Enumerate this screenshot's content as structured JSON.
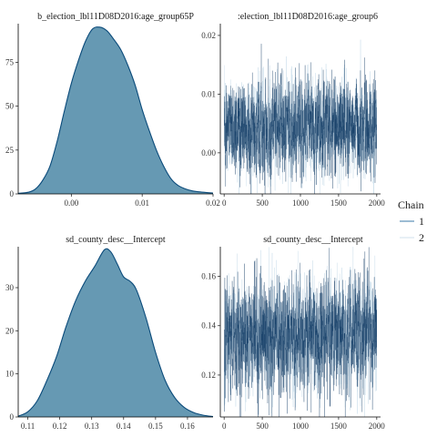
{
  "chart_data": [
    {
      "type": "area",
      "subtype": "density",
      "title": "b_election_lbl11D08D2016:age_group65P",
      "xlim": [
        -0.0075,
        0.02
      ],
      "ylim": [
        0,
        97
      ],
      "xticks": [
        0.0,
        0.01,
        0.02
      ],
      "xtick_labels": [
        "0.00",
        "0.01",
        "0.02"
      ],
      "yticks": [
        0,
        25,
        50,
        75
      ],
      "ytick_labels": [
        "0",
        "25",
        "50",
        "75"
      ],
      "x": [
        -0.0075,
        -0.006,
        -0.005,
        -0.004,
        -0.003,
        -0.002,
        -0.001,
        0.0,
        0.001,
        0.002,
        0.003,
        0.004,
        0.005,
        0.006,
        0.007,
        0.008,
        0.009,
        0.01,
        0.011,
        0.012,
        0.013,
        0.014,
        0.015,
        0.016,
        0.017,
        0.018,
        0.019,
        0.02
      ],
      "y": [
        0.3,
        1,
        3,
        8,
        16,
        30,
        47,
        63,
        76,
        87,
        94,
        95,
        93,
        88,
        82,
        73,
        62,
        48,
        36,
        25,
        16,
        9,
        5,
        3,
        1.8,
        1.2,
        0.8,
        0.5
      ],
      "fill": "#6699b3",
      "line_color": "#0a4a7a"
    },
    {
      "type": "line",
      "subtype": "trace",
      "title": ":election_lbl11D08D2016:age_group6",
      "xlim": [
        -50,
        2050
      ],
      "ylim": [
        -0.007,
        0.022
      ],
      "xticks": [
        0,
        500,
        1000,
        1500,
        2000
      ],
      "xtick_labels": [
        "0",
        "500",
        "1000",
        "1500",
        "2000"
      ],
      "yticks": [
        0.0,
        0.01,
        0.02
      ],
      "ytick_labels": [
        "0.00",
        "0.01",
        "0.02"
      ],
      "iterations": 2000,
      "mean": 0.0045,
      "sd": 0.004,
      "series": [
        {
          "name": "1",
          "color": "#0f3a63"
        },
        {
          "name": "2",
          "color": "#cfe0ec"
        }
      ]
    },
    {
      "type": "area",
      "subtype": "density",
      "title": "sd_county_desc__Intercept",
      "xlim": [
        0.107,
        0.168
      ],
      "ylim": [
        0,
        39.5
      ],
      "xticks": [
        0.11,
        0.12,
        0.13,
        0.14,
        0.15,
        0.16
      ],
      "xtick_labels": [
        "0.11",
        "0.12",
        "0.13",
        "0.14",
        "0.15",
        "0.16"
      ],
      "yticks": [
        0,
        10,
        20,
        30
      ],
      "ytick_labels": [
        "0",
        "10",
        "20",
        "30"
      ],
      "x": [
        0.107,
        0.11,
        0.113,
        0.116,
        0.119,
        0.122,
        0.125,
        0.128,
        0.131,
        0.134,
        0.136,
        0.138,
        0.14,
        0.142,
        0.144,
        0.147,
        0.15,
        0.153,
        0.156,
        0.159,
        0.162,
        0.165,
        0.168
      ],
      "y": [
        0.2,
        1.2,
        3.8,
        8.5,
        14,
        21,
        27,
        31.5,
        35,
        38.8,
        38.3,
        35.5,
        32.5,
        31.5,
        29.5,
        23,
        15,
        8.5,
        4.5,
        2.2,
        1,
        0.4,
        0.1
      ],
      "fill": "#6699b3",
      "line_color": "#0a4a7a"
    },
    {
      "type": "line",
      "subtype": "trace",
      "title": "sd_county_desc__Intercept",
      "xlim": [
        -50,
        2050
      ],
      "ylim": [
        0.103,
        0.172
      ],
      "xticks": [
        0,
        500,
        1000,
        1500,
        2000
      ],
      "xtick_labels": [
        "0",
        "500",
        "1000",
        "1500",
        "2000"
      ],
      "yticks": [
        0.12,
        0.14,
        0.16
      ],
      "ytick_labels": [
        "0.12",
        "0.14",
        "0.16"
      ],
      "iterations": 2000,
      "mean": 0.136,
      "sd": 0.011,
      "series": [
        {
          "name": "1",
          "color": "#0f3a63"
        },
        {
          "name": "2",
          "color": "#cfe0ec"
        }
      ]
    }
  ],
  "legend": {
    "title": "Chain",
    "entries": [
      {
        "label": "1",
        "color": "#5b8fb8"
      },
      {
        "label": "2",
        "color": "#d9e7f1"
      }
    ]
  }
}
